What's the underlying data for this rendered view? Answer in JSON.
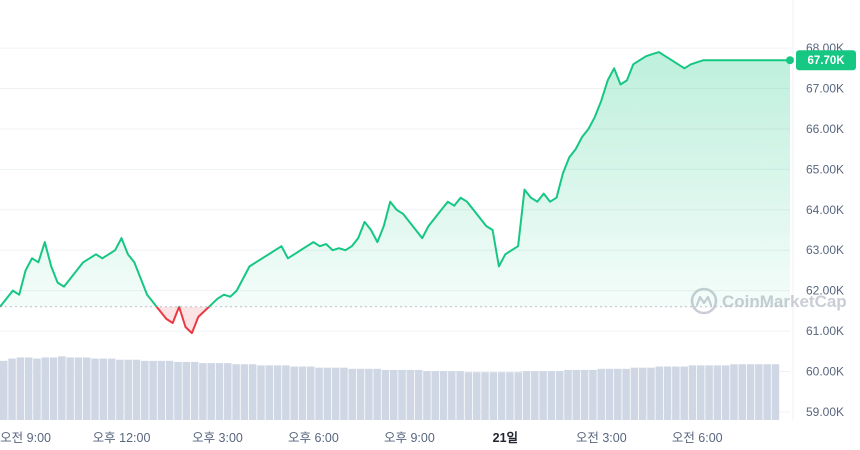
{
  "chart_data": {
    "type": "line",
    "y_ticks": [
      "59.00K",
      "60.00K",
      "61.00K",
      "62.00K",
      "63.00K",
      "64.00K",
      "65.00K",
      "66.00K",
      "67.00K",
      "68.00K"
    ],
    "y_tick_values": [
      59000,
      60000,
      61000,
      62000,
      63000,
      64000,
      65000,
      66000,
      67000,
      68000
    ],
    "ylim": [
      58800,
      68200
    ],
    "x_ticks": [
      {
        "label": "오전 9:00",
        "hour": 9,
        "bold": false
      },
      {
        "label": "오후 12:00",
        "hour": 12,
        "bold": false
      },
      {
        "label": "오후 3:00",
        "hour": 15,
        "bold": false
      },
      {
        "label": "오후 6:00",
        "hour": 18,
        "bold": false
      },
      {
        "label": "오후 9:00",
        "hour": 21,
        "bold": false
      },
      {
        "label": "21일",
        "hour": 24,
        "bold": true
      },
      {
        "label": "오전 3:00",
        "hour": 27,
        "bold": false
      },
      {
        "label": "오전 6:00",
        "hour": 30,
        "bold": false
      }
    ],
    "xlim_hours": [
      8.2,
      32.9
    ],
    "baseline": 61600,
    "current_price_label": "67.70K",
    "current_price": 67700,
    "colors": {
      "up": "#16c784",
      "down": "#ea3943",
      "grid": "#eff2f5",
      "volume": "#cfd6e4",
      "text": "#58667e"
    },
    "watermark": "CoinMarketCap",
    "series": [
      {
        "hours": [
          8.2,
          8.4,
          8.6,
          8.8,
          9.0,
          9.2,
          9.4,
          9.6,
          9.8,
          10.0,
          10.2,
          10.4,
          10.6,
          10.8,
          11.0,
          11.2,
          11.4,
          11.6,
          11.8,
          12.0,
          12.2,
          12.4,
          12.6,
          12.8,
          13.0,
          13.2,
          13.4,
          13.6,
          13.8,
          14.0,
          14.2,
          14.4,
          14.6,
          14.8,
          15.0,
          15.2,
          15.4,
          15.6,
          15.8,
          16.0,
          16.2,
          16.4,
          16.6,
          16.8,
          17.0,
          17.2,
          17.4,
          17.6,
          17.8,
          18.0,
          18.2,
          18.4,
          18.6,
          18.8,
          19.0,
          19.2,
          19.4,
          19.6,
          19.8,
          20.0,
          20.2,
          20.4,
          20.6,
          20.8,
          21.0,
          21.2,
          21.4,
          21.6,
          21.8,
          22.0,
          22.2,
          22.4,
          22.6,
          22.8,
          23.0,
          23.2,
          23.4,
          23.6,
          23.8,
          24.0,
          24.2,
          24.4,
          24.6,
          24.8,
          25.0,
          25.2,
          25.4,
          25.6,
          25.8,
          26.0,
          26.2,
          26.4,
          26.6,
          26.8,
          27.0,
          27.2,
          27.4,
          27.6,
          27.8,
          28.0,
          28.2,
          28.4,
          28.6,
          28.8,
          29.0,
          29.2,
          29.4,
          29.6,
          29.8,
          30.0,
          30.2,
          30.4,
          30.6,
          30.8,
          31.0,
          31.2,
          31.4,
          31.6,
          31.8,
          32.0,
          32.2,
          32.4,
          32.6,
          32.9
        ],
        "values": [
          61600,
          61800,
          62000,
          61900,
          62500,
          62800,
          62700,
          63200,
          62600,
          62200,
          62100,
          62300,
          62500,
          62700,
          62800,
          62900,
          62800,
          62900,
          63000,
          63300,
          62900,
          62700,
          62300,
          61900,
          61700,
          61500,
          61300,
          61200,
          61600,
          61100,
          60950,
          61350,
          61500,
          61650,
          61800,
          61900,
          61850,
          62000,
          62300,
          62600,
          62700,
          62800,
          62900,
          63000,
          63100,
          62800,
          62900,
          63000,
          63100,
          63200,
          63100,
          63150,
          63000,
          63050,
          63000,
          63100,
          63300,
          63700,
          63500,
          63200,
          63600,
          64200,
          64000,
          63900,
          63700,
          63500,
          63300,
          63600,
          63800,
          64000,
          64200,
          64100,
          64300,
          64200,
          64000,
          63800,
          63600,
          63500,
          62600,
          62900,
          63000,
          63100,
          64500,
          64300,
          64200,
          64400,
          64200,
          64300,
          64900,
          65300,
          65500,
          65800,
          66000,
          66300,
          66700,
          67200,
          67500,
          67100,
          67200,
          67600,
          67700,
          67800,
          67850,
          67900,
          67800,
          67700,
          67600,
          67500,
          67600,
          67650,
          67700,
          67700,
          67700,
          67700,
          67700,
          67700,
          67700,
          67700,
          67700,
          67700,
          67700,
          67700,
          67700,
          67700
        ]
      }
    ],
    "volume": [
      0.52,
      0.54,
      0.55,
      0.55,
      0.54,
      0.55,
      0.55,
      0.56,
      0.55,
      0.55,
      0.55,
      0.54,
      0.54,
      0.54,
      0.53,
      0.53,
      0.53,
      0.52,
      0.52,
      0.52,
      0.52,
      0.51,
      0.51,
      0.51,
      0.5,
      0.5,
      0.5,
      0.5,
      0.49,
      0.49,
      0.49,
      0.48,
      0.48,
      0.48,
      0.48,
      0.47,
      0.47,
      0.47,
      0.46,
      0.46,
      0.46,
      0.46,
      0.45,
      0.45,
      0.45,
      0.45,
      0.44,
      0.44,
      0.44,
      0.44,
      0.44,
      0.43,
      0.43,
      0.43,
      0.43,
      0.43,
      0.42,
      0.42,
      0.42,
      0.42,
      0.42,
      0.42,
      0.42,
      0.43,
      0.43,
      0.43,
      0.43,
      0.43,
      0.44,
      0.44,
      0.44,
      0.44,
      0.45,
      0.45,
      0.45,
      0.45,
      0.46,
      0.46,
      0.46,
      0.47,
      0.47,
      0.47,
      0.47,
      0.48,
      0.48,
      0.48,
      0.48,
      0.48,
      0.49,
      0.49,
      0.49,
      0.49,
      0.49,
      0.49
    ]
  }
}
